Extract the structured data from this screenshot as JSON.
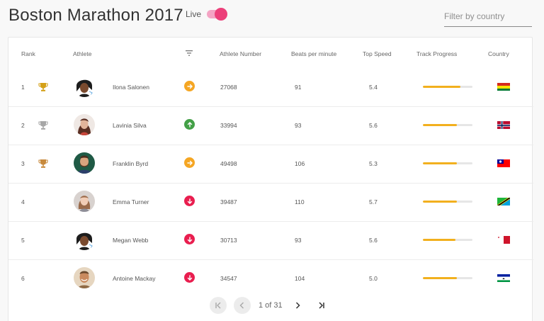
{
  "header": {
    "title": "Boston Marathon 2017",
    "live_label": "Live",
    "live_on": true,
    "filter_placeholder": "Filter by country"
  },
  "columns": {
    "rank": "Rank",
    "athlete": "Athlete",
    "number": "Athlete Number",
    "bpm": "Beats per minute",
    "speed": "Top Speed",
    "progress": "Track Progress",
    "country": "Country"
  },
  "colors": {
    "accent": "#ec407a",
    "progress": "#f2b01e",
    "status_flat": "#f5a623",
    "status_up": "#43a047",
    "status_down": "#e91e4f",
    "gold": "#d4a017",
    "silver": "#a7a7a7",
    "bronze": "#c88a3d"
  },
  "rows": [
    {
      "rank": "1",
      "name": "Ilona Salonen",
      "number": "27068",
      "bpm": "91",
      "speed": "5.4",
      "progress": 0.75,
      "status": "flat",
      "trophy": "gold",
      "avatar": "avatar-dark-hair",
      "country_flag": "flag-bolivia"
    },
    {
      "rank": "2",
      "name": "Lavinia Silva",
      "number": "33994",
      "bpm": "93",
      "speed": "5.6",
      "progress": 0.68,
      "status": "up",
      "trophy": "silver",
      "avatar": "avatar-woman-brown",
      "country_flag": "flag-norway"
    },
    {
      "rank": "3",
      "name": "Franklin Byrd",
      "number": "49498",
      "bpm": "106",
      "speed": "5.3",
      "progress": 0.68,
      "status": "flat",
      "trophy": "bronze",
      "avatar": "avatar-man-beard",
      "country_flag": "flag-taiwan"
    },
    {
      "rank": "4",
      "name": "Emma Turner",
      "number": "39487",
      "bpm": "110",
      "speed": "5.7",
      "progress": 0.68,
      "status": "down",
      "trophy": "",
      "avatar": "avatar-woman-light",
      "country_flag": "flag-tanzania"
    },
    {
      "rank": "5",
      "name": "Megan Webb",
      "number": "30713",
      "bpm": "93",
      "speed": "5.6",
      "progress": 0.66,
      "status": "down",
      "trophy": "",
      "avatar": "avatar-dark-hair",
      "country_flag": "flag-malta"
    },
    {
      "rank": "6",
      "name": "Antoine Mackay",
      "number": "34547",
      "bpm": "104",
      "speed": "5.0",
      "progress": 0.68,
      "status": "down",
      "trophy": "",
      "avatar": "avatar-man-smile",
      "country_flag": "flag-lesotho"
    }
  ],
  "pagination": {
    "page_text": "1 of 31"
  }
}
